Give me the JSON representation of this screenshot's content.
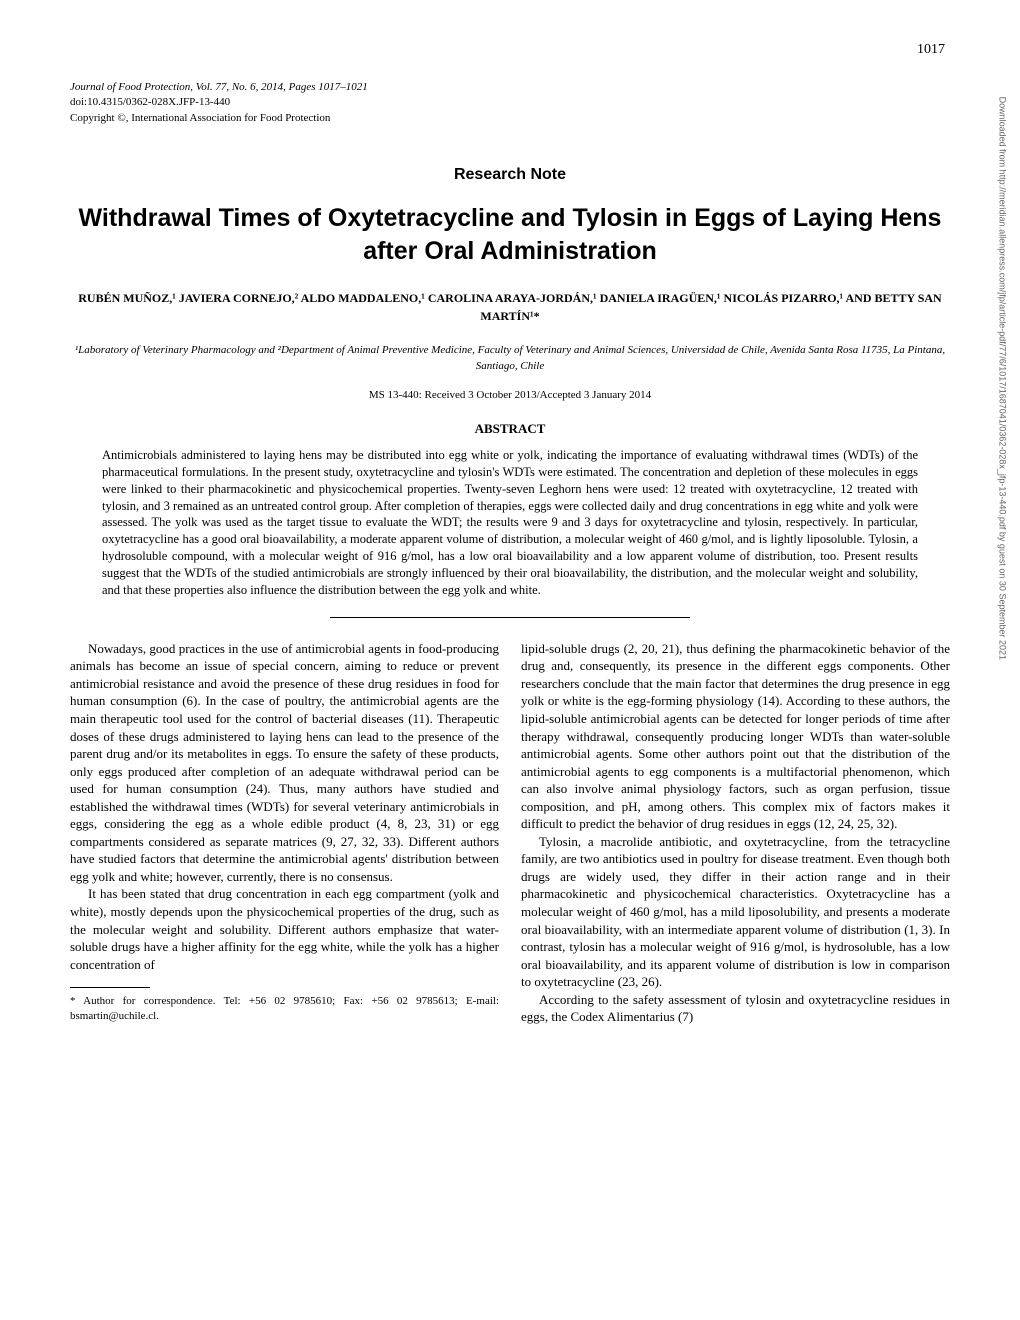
{
  "page_number": "1017",
  "journal": {
    "title": "Journal of Food Protection, Vol. 77, No. 6, 2014, Pages 1017–1021",
    "doi": "doi:10.4315/0362-028X.JFP-13-440",
    "copyright": "Copyright ©, International Association for Food Protection"
  },
  "research_note_label": "Research Note",
  "article_title": "Withdrawal Times of Oxytetracycline and Tylosin in Eggs of Laying Hens after Oral Administration",
  "authors": "RUBÉN MUÑOZ,¹ JAVIERA CORNEJO,² ALDO MADDALENO,¹ CAROLINA ARAYA-JORDÁN,¹ DANIELA IRAGÜEN,¹ NICOLÁS PIZARRO,¹ AND BETTY SAN MARTÍN¹*",
  "affiliations": "¹Laboratory of Veterinary Pharmacology and ²Department of Animal Preventive Medicine, Faculty of Veterinary and Animal Sciences, Universidad de Chile, Avenida Santa Rosa 11735, La Pintana, Santiago, Chile",
  "ms_info": "MS 13-440: Received 3 October 2013/Accepted 3 January 2014",
  "abstract_heading": "ABSTRACT",
  "abstract_text": "Antimicrobials administered to laying hens may be distributed into egg white or yolk, indicating the importance of evaluating withdrawal times (WDTs) of the pharmaceutical formulations. In the present study, oxytetracycline and tylosin's WDTs were estimated. The concentration and depletion of these molecules in eggs were linked to their pharmacokinetic and physicochemical properties. Twenty-seven Leghorn hens were used: 12 treated with oxytetracycline, 12 treated with tylosin, and 3 remained as an untreated control group. After completion of therapies, eggs were collected daily and drug concentrations in egg white and yolk were assessed. The yolk was used as the target tissue to evaluate the WDT; the results were 9 and 3 days for oxytetracycline and tylosin, respectively. In particular, oxytetracycline has a good oral bioavailability, a moderate apparent volume of distribution, a molecular weight of 460 g/mol, and is lightly liposoluble. Tylosin, a hydrosoluble compound, with a molecular weight of 916 g/mol, has a low oral bioavailability and a low apparent volume of distribution, too. Present results suggest that the WDTs of the studied antimicrobials are strongly influenced by their oral bioavailability, the distribution, and the molecular weight and solubility, and that these properties also influence the distribution between the egg yolk and white.",
  "body": {
    "left_col": {
      "p1": "Nowadays, good practices in the use of antimicrobial agents in food-producing animals has become an issue of special concern, aiming to reduce or prevent antimicrobial resistance and avoid the presence of these drug residues in food for human consumption (6). In the case of poultry, the antimicrobial agents are the main therapeutic tool used for the control of bacterial diseases (11). Therapeutic doses of these drugs administered to laying hens can lead to the presence of the parent drug and/or its metabolites in eggs. To ensure the safety of these products, only eggs produced after completion of an adequate withdrawal period can be used for human consumption (24). Thus, many authors have studied and established the withdrawal times (WDTs) for several veterinary antimicrobials in eggs, considering the egg as a whole edible product (4, 8, 23, 31) or egg compartments considered as separate matrices (9, 27, 32, 33). Different authors have studied factors that determine the antimicrobial agents' distribution between egg yolk and white; however, currently, there is no consensus.",
      "p2": "It has been stated that drug concentration in each egg compartment (yolk and white), mostly depends upon the physicochemical properties of the drug, such as the molecular weight and solubility. Different authors emphasize that water-soluble drugs have a higher affinity for the egg white, while the yolk has a higher concentration of"
    },
    "right_col": {
      "p1": "lipid-soluble drugs (2, 20, 21), thus defining the pharmacokinetic behavior of the drug and, consequently, its presence in the different eggs components. Other researchers conclude that the main factor that determines the drug presence in egg yolk or white is the egg-forming physiology (14). According to these authors, the lipid-soluble antimicrobial agents can be detected for longer periods of time after therapy withdrawal, consequently producing longer WDTs than water-soluble antimicrobial agents. Some other authors point out that the distribution of the antimicrobial agents to egg components is a multifactorial phenomenon, which can also involve animal physiology factors, such as organ perfusion, tissue composition, and pH, among others. This complex mix of factors makes it difficult to predict the behavior of drug residues in eggs (12, 24, 25, 32).",
      "p2": "Tylosin, a macrolide antibiotic, and oxytetracycline, from the tetracycline family, are two antibiotics used in poultry for disease treatment. Even though both drugs are widely used, they differ in their action range and in their pharmacokinetic and physicochemical characteristics. Oxytetracycline has a molecular weight of 460 g/mol, has a mild liposolubility, and presents a moderate oral bioavailability, with an intermediate apparent volume of distribution (1, 3). In contrast, tylosin has a molecular weight of 916 g/mol, is hydrosoluble, has a low oral bioavailability, and its apparent volume of distribution is low in comparison to oxytetracycline (23, 26).",
      "p3": "According to the safety assessment of tylosin and oxytetracycline residues in eggs, the Codex Alimentarius (7)"
    }
  },
  "correspondence": "* Author for correspondence. Tel: +56 02 9785610; Fax: +56 02 9785613; E-mail: bsmartin@uchile.cl.",
  "side_text": "Downloaded from http://meridian.allenpress.com/jfp/article-pdf/77/6/1017/1687041/0362-028x_jfp-13-440.pdf by guest on 30 September 2021",
  "colors": {
    "text": "#000000",
    "background": "#ffffff",
    "side_text": "#666666"
  },
  "typography": {
    "body_font": "Times New Roman",
    "heading_font": "Arial",
    "body_size_pt": 13,
    "abstract_size_pt": 12.5,
    "title_size_pt": 25,
    "authors_size_pt": 12,
    "small_size_pt": 11
  }
}
